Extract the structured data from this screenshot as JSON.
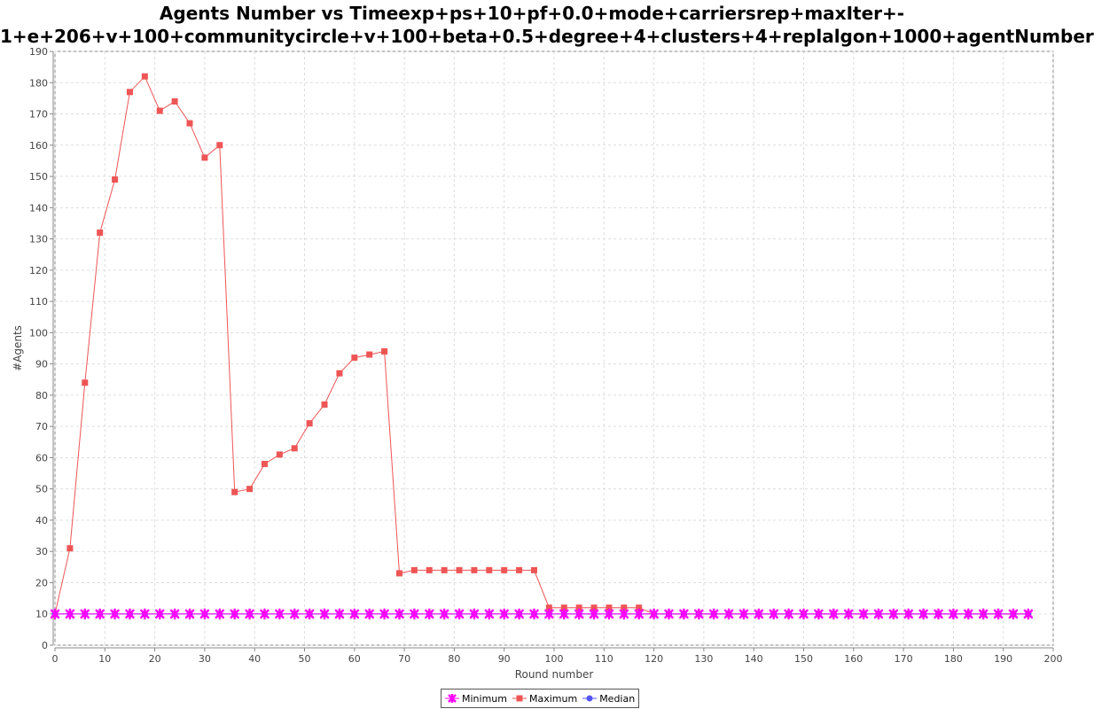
{
  "chart_data": {
    "type": "line",
    "title": [
      "Agents Number vs Timeexp+ps+10+pf+0.0+mode+carriersrep+maxIter+-",
      "1+e+206+v+100+communitycircle+v+100+beta+0.5+degree+4+clusters+4+replalgon+1000+agentNumber"
    ],
    "xlabel": "Round number",
    "ylabel": "#Agents",
    "xlim": [
      0,
      200
    ],
    "ylim": [
      0,
      190
    ],
    "xticks": [
      0,
      10,
      20,
      30,
      40,
      50,
      60,
      70,
      80,
      90,
      100,
      110,
      120,
      130,
      140,
      150,
      160,
      170,
      180,
      190,
      200
    ],
    "yticks": [
      0,
      10,
      20,
      30,
      40,
      50,
      60,
      70,
      80,
      90,
      100,
      110,
      120,
      130,
      140,
      150,
      160,
      170,
      180,
      190
    ],
    "grid": true,
    "legend_position": "bottom-center",
    "series": [
      {
        "name": "Minimum",
        "color": "#ff00ff",
        "marker": "x-star",
        "x": [
          0,
          3,
          6,
          9,
          12,
          15,
          18,
          21,
          24,
          27,
          30,
          33,
          36,
          39,
          42,
          45,
          48,
          51,
          54,
          57,
          60,
          63,
          66,
          69,
          72,
          75,
          78,
          81,
          84,
          87,
          90,
          93,
          96,
          99,
          102,
          105,
          108,
          111,
          114,
          117,
          120,
          123,
          126,
          129,
          132,
          135,
          138,
          141,
          144,
          147,
          150,
          153,
          156,
          159,
          162,
          165,
          168,
          171,
          174,
          177,
          180,
          183,
          186,
          189,
          192,
          195
        ],
        "values": [
          10,
          10,
          10,
          10,
          10,
          10,
          10,
          10,
          10,
          10,
          10,
          10,
          10,
          10,
          10,
          10,
          10,
          10,
          10,
          10,
          10,
          10,
          10,
          10,
          10,
          10,
          10,
          10,
          10,
          10,
          10,
          10,
          10,
          10,
          10,
          10,
          10,
          10,
          10,
          10,
          10,
          10,
          10,
          10,
          10,
          10,
          10,
          10,
          10,
          10,
          10,
          10,
          10,
          10,
          10,
          10,
          10,
          10,
          10,
          10,
          10,
          10,
          10,
          10,
          10,
          10
        ]
      },
      {
        "name": "Maximum",
        "color": "#ee5555",
        "marker": "square",
        "x": [
          0,
          3,
          6,
          9,
          12,
          15,
          18,
          21,
          24,
          27,
          30,
          33,
          36,
          39,
          42,
          45,
          48,
          51,
          54,
          57,
          60,
          63,
          66,
          69,
          72,
          75,
          78,
          81,
          84,
          87,
          90,
          93,
          96,
          99,
          102,
          105,
          108,
          111,
          114,
          117,
          120,
          123,
          126,
          129,
          132,
          135,
          138,
          141,
          144,
          147,
          150,
          153,
          156,
          159,
          162,
          165,
          168,
          171,
          174,
          177,
          180,
          183,
          186,
          189,
          192,
          195
        ],
        "values": [
          10,
          31,
          84,
          132,
          149,
          177,
          182,
          171,
          174,
          167,
          156,
          160,
          49,
          50,
          58,
          61,
          63,
          71,
          77,
          87,
          92,
          93,
          94,
          23,
          24,
          24,
          24,
          24,
          24,
          24,
          24,
          24,
          24,
          12,
          12,
          12,
          12,
          12,
          12,
          12,
          10,
          10,
          10,
          10,
          10,
          10,
          10,
          10,
          10,
          10,
          10,
          10,
          10,
          10,
          10,
          10,
          10,
          10,
          10,
          10,
          10,
          10,
          10,
          10,
          10,
          10
        ]
      },
      {
        "name": "Median",
        "color": "#5555ff",
        "marker": "circle",
        "x": [
          0,
          3,
          6,
          9,
          12,
          15,
          18,
          21,
          24,
          27,
          30,
          33,
          36,
          39,
          42,
          45,
          48,
          51,
          54,
          57,
          60,
          63,
          66,
          69,
          72,
          75,
          78,
          81,
          84,
          87,
          90,
          93,
          96,
          99,
          102,
          105,
          108,
          111,
          114,
          117,
          120,
          123,
          126,
          129,
          132,
          135,
          138,
          141,
          144,
          147,
          150,
          153,
          156,
          159,
          162,
          165,
          168,
          171,
          174,
          177,
          180,
          183,
          186,
          189,
          192,
          195
        ],
        "values": [
          10,
          10,
          10,
          10,
          10,
          10,
          10,
          10,
          10,
          10,
          10,
          10,
          10,
          10,
          10,
          10,
          10,
          10,
          10,
          10,
          10,
          10,
          10,
          10,
          10,
          10,
          10,
          10,
          10,
          10,
          10,
          10,
          10,
          10,
          10,
          10,
          10,
          10,
          10,
          10,
          10,
          10,
          10,
          10,
          10,
          10,
          10,
          10,
          10,
          10,
          10,
          10,
          10,
          10,
          10,
          10,
          10,
          10,
          10,
          10,
          10,
          10,
          10,
          10,
          10,
          10
        ]
      }
    ]
  }
}
